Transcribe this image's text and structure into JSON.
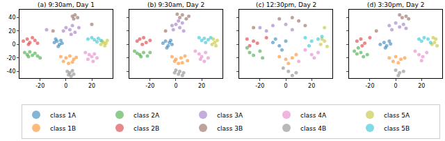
{
  "chart_data": [
    {
      "type": "scatter",
      "title": "(a) 9:30am, Day 1",
      "xlim": [
        -36,
        36
      ],
      "ylim": [
        -50,
        52
      ],
      "xticks": [
        -20,
        0,
        20
      ],
      "yticks": [
        -40,
        -20,
        0,
        20,
        40
      ],
      "legend": "bottom",
      "series": [
        {
          "name": "class 1A",
          "color": "#1f77b4",
          "x": [
            -9,
            -7,
            -5,
            -6,
            -3,
            -8,
            -4
          ],
          "y": [
            3,
            5,
            0,
            -3,
            2,
            8,
            6
          ]
        },
        {
          "name": "class 2A",
          "color": "#2ca02c",
          "x": [
            -32,
            -30,
            -28,
            -26,
            -24,
            -22,
            -29,
            -20
          ],
          "y": [
            -12,
            -15,
            -11,
            -16,
            -13,
            -17,
            -18,
            -20
          ]
        },
        {
          "name": "class 3A",
          "color": "#9467bd",
          "x": [
            0,
            3,
            5,
            -2,
            7,
            4,
            10,
            -15
          ],
          "y": [
            25,
            22,
            28,
            20,
            18,
            15,
            25,
            22
          ]
        },
        {
          "name": "class 4A",
          "color": "#e377c2",
          "x": [
            15,
            18,
            20,
            22,
            17,
            21,
            24
          ],
          "y": [
            -12,
            -15,
            -18,
            -14,
            -22,
            -25,
            -20
          ]
        },
        {
          "name": "class 5A",
          "color": "#bcbd22",
          "x": [
            27,
            29,
            30,
            31,
            28,
            32
          ],
          "y": [
            0,
            3,
            -2,
            2,
            5,
            6
          ]
        },
        {
          "name": "class 1B",
          "color": "#ff7f0e",
          "x": [
            -4,
            0,
            3,
            6,
            8,
            -2,
            2,
            5
          ],
          "y": [
            -18,
            -20,
            -17,
            -22,
            -19,
            -25,
            -28,
            -26
          ]
        },
        {
          "name": "class 2B",
          "color": "#d62728",
          "x": [
            -33,
            -30,
            -28,
            -26,
            -24,
            -22,
            -29
          ],
          "y": [
            5,
            8,
            3,
            10,
            6,
            2,
            0
          ]
        },
        {
          "name": "class 3B",
          "color": "#8c564b",
          "x": [
            5,
            7,
            9,
            6,
            -10,
            20
          ],
          "y": [
            42,
            44,
            40,
            38,
            20,
            30
          ]
        },
        {
          "name": "class 4B",
          "color": "#7f7f7f",
          "x": [
            1,
            3,
            5,
            2,
            6,
            4
          ],
          "y": [
            -40,
            -42,
            -39,
            -45,
            -44,
            -47
          ]
        },
        {
          "name": "class 5B",
          "color": "#17becf",
          "x": [
            17,
            20,
            22,
            25,
            27,
            24
          ],
          "y": [
            8,
            10,
            7,
            9,
            6,
            4
          ]
        }
      ]
    },
    {
      "type": "scatter",
      "title": "(b) 9:30am, Day 2",
      "xlim": [
        -36,
        36
      ],
      "ylim": [
        -50,
        52
      ],
      "xticks": [
        -20,
        0,
        20
      ],
      "yticks": [
        -40,
        -20,
        0,
        20,
        40
      ],
      "series": [
        {
          "name": "class 1A",
          "color": "#1f77b4",
          "x": [
            -10,
            -8,
            -6,
            -5,
            -4,
            -7,
            -3
          ],
          "y": [
            2,
            5,
            -2,
            3,
            6,
            -5,
            0
          ]
        },
        {
          "name": "class 2A",
          "color": "#2ca02c",
          "x": [
            -32,
            -30,
            -28,
            -25,
            -27,
            -22,
            -20
          ],
          "y": [
            -10,
            -13,
            -15,
            -12,
            -18,
            -17,
            -12
          ]
        },
        {
          "name": "class 3A",
          "color": "#9467bd",
          "x": [
            -3,
            0,
            3,
            5,
            -2,
            6,
            2
          ],
          "y": [
            28,
            30,
            25,
            32,
            22,
            20,
            35
          ]
        },
        {
          "name": "class 4A",
          "color": "#e377c2",
          "x": [
            15,
            18,
            20,
            23,
            19,
            25,
            22
          ],
          "y": [
            -10,
            -14,
            -18,
            -12,
            -22,
            -20,
            -25
          ]
        },
        {
          "name": "class 5A",
          "color": "#bcbd22",
          "x": [
            28,
            30,
            31,
            32,
            29
          ],
          "y": [
            0,
            3,
            -2,
            6,
            8
          ]
        },
        {
          "name": "class 1B",
          "color": "#ff7f0e",
          "x": [
            -3,
            0,
            4,
            7,
            9,
            2,
            -1,
            5
          ],
          "y": [
            -18,
            -22,
            -20,
            -17,
            -24,
            -28,
            -25,
            -27
          ]
        },
        {
          "name": "class 2B",
          "color": "#d62728",
          "x": [
            -30,
            -28,
            -25,
            -23,
            -26,
            -20
          ],
          "y": [
            5,
            8,
            10,
            3,
            0,
            6
          ]
        },
        {
          "name": "class 3B",
          "color": "#8c564b",
          "x": [
            3,
            5,
            8,
            -8,
            10,
            1
          ],
          "y": [
            40,
            44,
            38,
            20,
            42,
            45
          ]
        },
        {
          "name": "class 4B",
          "color": "#7f7f7f",
          "x": [
            0,
            3,
            6,
            2,
            5,
            -1
          ],
          "y": [
            -38,
            -40,
            -42,
            -44,
            -46,
            -42
          ]
        },
        {
          "name": "class 5B",
          "color": "#17becf",
          "x": [
            18,
            20,
            22,
            25,
            27,
            23
          ],
          "y": [
            10,
            6,
            9,
            7,
            10,
            3
          ]
        }
      ]
    },
    {
      "type": "scatter",
      "title": "(c) 12:30pm, Day 2",
      "xlim": [
        -36,
        36
      ],
      "ylim": [
        -50,
        52
      ],
      "xticks": [
        -20,
        0,
        20
      ],
      "yticks": [
        -40,
        -20,
        0,
        20,
        40
      ],
      "series": [
        {
          "name": "class 1A",
          "color": "#1f77b4",
          "x": [
            -10,
            -5,
            -8,
            0,
            -3
          ],
          "y": [
            3,
            -2,
            8,
            5,
            -8
          ]
        },
        {
          "name": "class 2A",
          "color": "#2ca02c",
          "x": [
            -28,
            -25,
            -20,
            -30,
            -18
          ],
          "y": [
            -12,
            -16,
            -10,
            -5,
            -20
          ]
        },
        {
          "name": "class 3A",
          "color": "#9467bd",
          "x": [
            -20,
            -10,
            0,
            5,
            -15
          ],
          "y": [
            25,
            28,
            30,
            22,
            20
          ]
        },
        {
          "name": "class 4A",
          "color": "#e377c2",
          "x": [
            15,
            20,
            22,
            25,
            10
          ],
          "y": [
            -8,
            -15,
            -20,
            -12,
            -25
          ]
        },
        {
          "name": "class 5A",
          "color": "#bcbd22",
          "x": [
            27,
            30,
            32,
            30,
            28
          ],
          "y": [
            0,
            5,
            -3,
            25,
            8
          ]
        },
        {
          "name": "class 1B",
          "color": "#ff7f0e",
          "x": [
            -5,
            0,
            5,
            8,
            2
          ],
          "y": [
            -18,
            -22,
            -20,
            -15,
            -28
          ]
        },
        {
          "name": "class 2B",
          "color": "#d62728",
          "x": [
            -30,
            -25,
            -22,
            -15,
            -28
          ],
          "y": [
            8,
            5,
            2,
            10,
            -2
          ]
        },
        {
          "name": "class 3B",
          "color": "#8c564b",
          "x": [
            -25,
            5,
            10,
            -5,
            15
          ],
          "y": [
            25,
            40,
            35,
            38,
            28
          ]
        },
        {
          "name": "class 4B",
          "color": "#7f7f7f",
          "x": [
            2,
            5,
            -2,
            8
          ],
          "y": [
            -40,
            -46,
            -35,
            -42
          ]
        },
        {
          "name": "class 5B",
          "color": "#17becf",
          "x": [
            15,
            20,
            25,
            28,
            18
          ],
          "y": [
            10,
            5,
            8,
            12,
            -2
          ]
        }
      ]
    },
    {
      "type": "scatter",
      "title": "(d) 3:30pm, Day 2",
      "xlim": [
        -36,
        36
      ],
      "ylim": [
        -50,
        52
      ],
      "xticks": [
        -20,
        0,
        20
      ],
      "yticks": [
        -40,
        -20,
        0,
        20,
        40
      ],
      "series": [
        {
          "name": "class 1A",
          "color": "#1f77b4",
          "x": [
            -12,
            -9,
            -7,
            -5,
            -8,
            -4
          ],
          "y": [
            0,
            3,
            -2,
            5,
            -5,
            1
          ]
        },
        {
          "name": "class 2A",
          "color": "#2ca02c",
          "x": [
            -32,
            -30,
            -27,
            -25,
            -22,
            -29
          ],
          "y": [
            -10,
            -14,
            -12,
            -18,
            -15,
            -5
          ]
        },
        {
          "name": "class 3A",
          "color": "#9467bd",
          "x": [
            -5,
            0,
            3,
            6,
            -3,
            8
          ],
          "y": [
            28,
            32,
            26,
            30,
            22,
            24
          ]
        },
        {
          "name": "class 4A",
          "color": "#e377c2",
          "x": [
            15,
            18,
            21,
            24,
            20
          ],
          "y": [
            -10,
            -15,
            -18,
            -12,
            -24
          ]
        },
        {
          "name": "class 5A",
          "color": "#bcbd22",
          "x": [
            28,
            30,
            32,
            31,
            29
          ],
          "y": [
            0,
            3,
            -2,
            8,
            10
          ]
        },
        {
          "name": "class 1B",
          "color": "#ff7f0e",
          "x": [
            -5,
            0,
            4,
            7,
            2,
            -2
          ],
          "y": [
            -20,
            -18,
            -22,
            -20,
            -27,
            -25
          ]
        },
        {
          "name": "class 2B",
          "color": "#d62728",
          "x": [
            -30,
            -27,
            -24,
            -20,
            -26
          ],
          "y": [
            5,
            8,
            2,
            10,
            -2
          ]
        },
        {
          "name": "class 3B",
          "color": "#8c564b",
          "x": [
            5,
            8,
            10,
            -15,
            3
          ],
          "y": [
            40,
            42,
            38,
            20,
            44
          ]
        },
        {
          "name": "class 4B",
          "color": "#7f7f7f",
          "x": [
            0,
            3,
            6,
            2
          ],
          "y": [
            -38,
            -42,
            -40,
            -46
          ]
        },
        {
          "name": "class 5B",
          "color": "#17becf",
          "x": [
            18,
            20,
            22,
            25,
            27
          ],
          "y": [
            8,
            5,
            10,
            8,
            3
          ]
        }
      ]
    }
  ]
}
